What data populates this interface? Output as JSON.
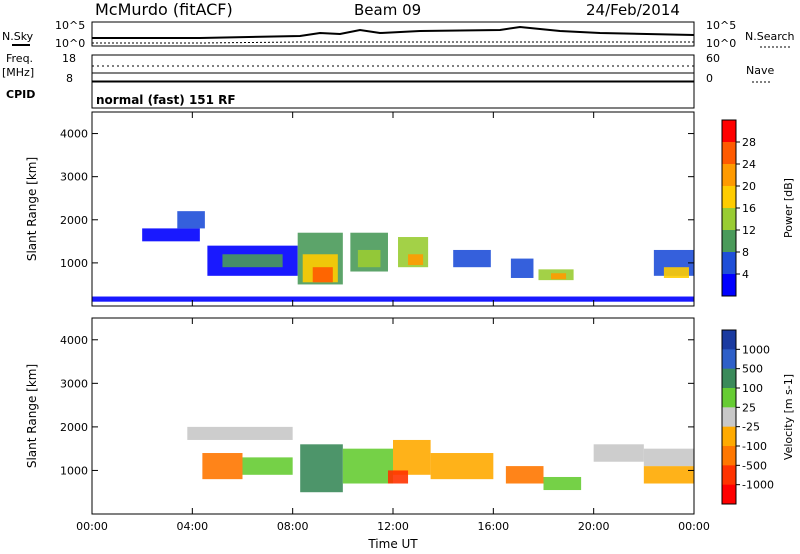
{
  "header": {
    "title": "McMurdo (fitACF)",
    "beam": "Beam 09",
    "date": "24/Feb/2014"
  },
  "summary_panel": {
    "nsky_label": "N.Sky",
    "nsearch_label": "N.Search",
    "noise_ticks": [
      "10^5",
      "10^0"
    ],
    "noise_ticks_right": [
      "10^5",
      "10^0"
    ],
    "freq_label": "Freq.",
    "freq_unit": "[MHz]",
    "freq_ticks": [
      "18",
      "8"
    ],
    "nave_label": "Nave",
    "nave_ticks": [
      "60",
      "0"
    ],
    "cpid_label": "CPID",
    "cpid_text": "normal (fast) 151 RF"
  },
  "chart_data": [
    {
      "type": "heatmap",
      "title": "",
      "xlabel": "",
      "ylabel": "Slant Range [km]",
      "xlim": [
        0,
        24
      ],
      "ylim": [
        0,
        4500
      ],
      "x_tick_values": [
        0,
        4,
        8,
        12,
        16,
        20,
        24
      ],
      "y_tick_values": [
        1000,
        2000,
        3000,
        4000
      ],
      "y_ticks": [
        "1000",
        "2000",
        "3000",
        "4000"
      ],
      "colorbar": {
        "label": "Power [dB]",
        "ticks": [
          "28",
          "24",
          "20",
          "16",
          "12",
          "8",
          "4"
        ],
        "colors": [
          "#ff0000",
          "#ff5a00",
          "#ff9a00",
          "#ffcc00",
          "#99cc33",
          "#4a9a5a",
          "#1f4fd8",
          "#0000ff"
        ]
      },
      "regions": [
        {
          "x0": 2.0,
          "x1": 4.3,
          "y0": 1500,
          "y1": 1800,
          "level": 0
        },
        {
          "x0": 3.4,
          "x1": 4.5,
          "y0": 1800,
          "y1": 2200,
          "level": 1
        },
        {
          "x0": 4.6,
          "x1": 8.2,
          "y0": 700,
          "y1": 1400,
          "level": 0
        },
        {
          "x0": 5.2,
          "x1": 7.6,
          "y0": 900,
          "y1": 1200,
          "level": 2
        },
        {
          "x0": 8.2,
          "x1": 10.0,
          "y0": 500,
          "y1": 1700,
          "level": 2
        },
        {
          "x0": 8.4,
          "x1": 9.8,
          "y0": 550,
          "y1": 1200,
          "level": 4
        },
        {
          "x0": 8.8,
          "x1": 9.6,
          "y0": 550,
          "y1": 900,
          "level": 6
        },
        {
          "x0": 10.3,
          "x1": 11.8,
          "y0": 800,
          "y1": 1700,
          "level": 2
        },
        {
          "x0": 10.6,
          "x1": 11.5,
          "y0": 900,
          "y1": 1300,
          "level": 3
        },
        {
          "x0": 12.2,
          "x1": 13.4,
          "y0": 900,
          "y1": 1600,
          "level": 3
        },
        {
          "x0": 12.6,
          "x1": 13.2,
          "y0": 950,
          "y1": 1200,
          "level": 5
        },
        {
          "x0": 14.4,
          "x1": 15.9,
          "y0": 900,
          "y1": 1300,
          "level": 1
        },
        {
          "x0": 16.7,
          "x1": 17.6,
          "y0": 650,
          "y1": 1100,
          "level": 1
        },
        {
          "x0": 17.8,
          "x1": 19.2,
          "y0": 600,
          "y1": 850,
          "level": 3
        },
        {
          "x0": 18.3,
          "x1": 18.9,
          "y0": 620,
          "y1": 760,
          "level": 5
        },
        {
          "x0": 22.4,
          "x1": 24.0,
          "y0": 700,
          "y1": 1300,
          "level": 1
        },
        {
          "x0": 22.8,
          "x1": 23.8,
          "y0": 650,
          "y1": 900,
          "level": 4
        },
        {
          "x0": 0.0,
          "x1": 24.0,
          "y0": 100,
          "y1": 220,
          "level": 0
        }
      ]
    },
    {
      "type": "heatmap",
      "title": "",
      "xlabel": "Time UT",
      "ylabel": "Slant Range [km]",
      "xlim": [
        0,
        24
      ],
      "ylim": [
        0,
        4500
      ],
      "x_tick_values": [
        0,
        4,
        8,
        12,
        16,
        20,
        24
      ],
      "x_ticks": [
        "00:00",
        "04:00",
        "08:00",
        "12:00",
        "16:00",
        "20:00",
        "00:00"
      ],
      "y_tick_values": [
        1000,
        2000,
        3000,
        4000
      ],
      "y_ticks": [
        "1000",
        "2000",
        "3000",
        "4000"
      ],
      "colorbar": {
        "label": "Velocity [m s-1]",
        "ticks": [
          "1000",
          "500",
          "100",
          "25",
          "-25",
          "-100",
          "-500",
          "-1000"
        ],
        "colors": [
          "#1a3aa0",
          "#2e5fc8",
          "#3a8a5a",
          "#66cc33",
          "#c8c8c8",
          "#ffaa00",
          "#ff7700",
          "#ff3300",
          "#ff0000"
        ]
      },
      "regions": [
        {
          "x0": 3.8,
          "x1": 8.0,
          "y0": 1700,
          "y1": 2000,
          "level": 4
        },
        {
          "x0": 4.4,
          "x1": 6.0,
          "y0": 800,
          "y1": 1400,
          "level": 6
        },
        {
          "x0": 6.0,
          "x1": 8.0,
          "y0": 900,
          "y1": 1300,
          "level": 3
        },
        {
          "x0": 8.3,
          "x1": 10.0,
          "y0": 500,
          "y1": 1600,
          "level": 2
        },
        {
          "x0": 10.0,
          "x1": 12.0,
          "y0": 700,
          "y1": 1500,
          "level": 3
        },
        {
          "x0": 12.0,
          "x1": 13.5,
          "y0": 900,
          "y1": 1700,
          "level": 5
        },
        {
          "x0": 13.5,
          "x1": 16.0,
          "y0": 800,
          "y1": 1400,
          "level": 5
        },
        {
          "x0": 16.5,
          "x1": 18.0,
          "y0": 700,
          "y1": 1100,
          "level": 6
        },
        {
          "x0": 18.0,
          "x1": 19.5,
          "y0": 550,
          "y1": 850,
          "level": 3
        },
        {
          "x0": 20.0,
          "x1": 22.0,
          "y0": 1200,
          "y1": 1600,
          "level": 4
        },
        {
          "x0": 22.0,
          "x1": 24.0,
          "y0": 700,
          "y1": 1100,
          "level": 5
        },
        {
          "x0": 22.0,
          "x1": 24.0,
          "y0": 1100,
          "y1": 1500,
          "level": 4
        },
        {
          "x0": 11.8,
          "x1": 12.6,
          "y0": 700,
          "y1": 1000,
          "level": 7
        }
      ]
    }
  ]
}
